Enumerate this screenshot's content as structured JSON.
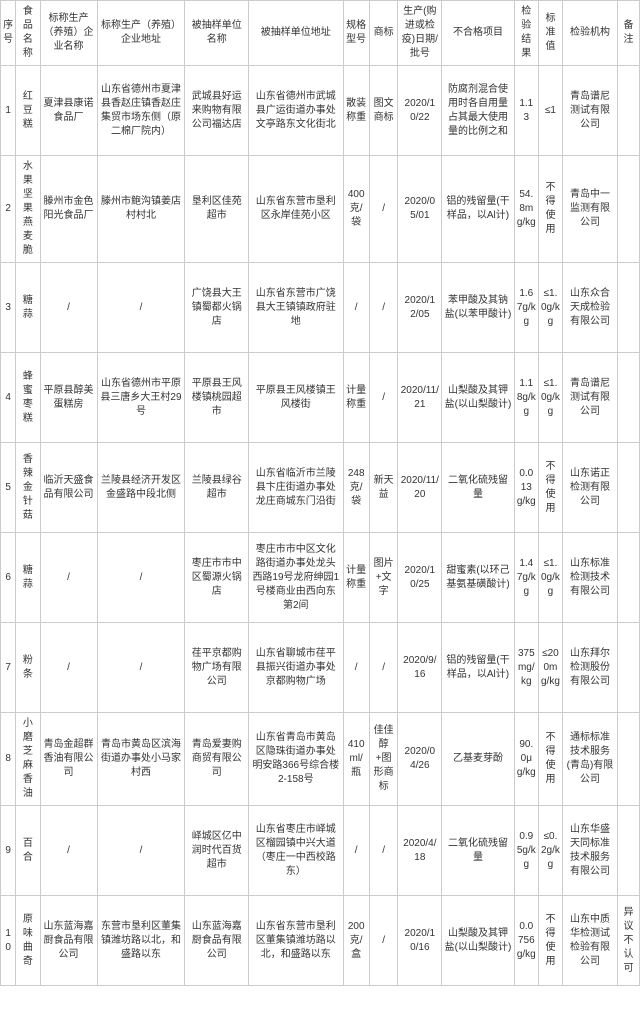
{
  "headers": {
    "idx": "序号",
    "name": "食品名称",
    "producer": "标称生产（养殖）企业名称",
    "producerAddr": "标称生产（养殖）企业地址",
    "sampledUnit": "被抽样单位名称",
    "sampledAddr": "被抽样单位地址",
    "spec": "规格型号",
    "trademark": "商标",
    "date": "生产(购进或检疫)日期/批号",
    "failItem": "不合格项目",
    "result": "检验结果",
    "standard": "标准值",
    "institution": "检验机构",
    "note": "备注"
  },
  "rows": [
    {
      "idx": "1",
      "name": "红豆糕",
      "producer": "夏津县康诺食品厂",
      "producerAddr": "山东省德州市夏津县香赵庄镇香赵庄集贸市场东侧（原二棉厂院内）",
      "sampledUnit": "武城县好运来购物有限公司福达店",
      "sampledAddr": "山东省德州市武城县广运街道办事处文亭路东文化街北",
      "spec": "散装称重",
      "trademark": "图文商标",
      "date": "2020/10/22",
      "failItem": "防腐剂混合使用时各自用量占其最大使用量的比例之和",
      "result": "1.13",
      "standard": "≤1",
      "institution": "青岛谱尼测试有限公司",
      "note": ""
    },
    {
      "idx": "2",
      "name": "水果坚果燕麦脆",
      "producer": "滕州市金色阳光食品厂",
      "producerAddr": "滕州市鲍沟镇姜店村村北",
      "sampledUnit": "垦利区佳苑超市",
      "sampledAddr": "山东省东营市垦利区永岸佳苑小区",
      "spec": "400克/袋",
      "trademark": "/",
      "date": "2020/05/01",
      "failItem": "铝的残留量(干样品，以Al计)",
      "result": "54.8mg/kg",
      "standard": "不得使用",
      "institution": "青岛中一监测有限公司",
      "note": ""
    },
    {
      "idx": "3",
      "name": "糖蒜",
      "producer": "/",
      "producerAddr": "/",
      "sampledUnit": "广饶县大王镇蜀都火锅店",
      "sampledAddr": "山东省东营市广饶县大王镇镇政府驻地",
      "spec": "/",
      "trademark": "/",
      "date": "2020/12/05",
      "failItem": "苯甲酸及其钠盐(以苯甲酸计)",
      "result": "1.67g/kg",
      "standard": "≤1.0g/kg",
      "institution": "山东众合天成检验有限公司",
      "note": ""
    },
    {
      "idx": "4",
      "name": "蜂蜜枣糕",
      "producer": "平原县醇美蛋糕房",
      "producerAddr": "山东省德州市平原县三唐乡大王村29号",
      "sampledUnit": "平原县王风楼镇桃园超市",
      "sampledAddr": "平原县王风楼镇王风楼街",
      "spec": "计量称重",
      "trademark": "/",
      "date": "2020/11/21",
      "failItem": "山梨酸及其钾盐(以山梨酸计)",
      "result": "1.18g/kg",
      "standard": "≤1.0g/kg",
      "institution": "青岛谱尼测试有限公司",
      "note": ""
    },
    {
      "idx": "5",
      "name": "香辣金针菇",
      "producer": "临沂天盛食品有限公司",
      "producerAddr": "兰陵县经济开发区金盛路中段北侧",
      "sampledUnit": "兰陵县绿谷超市",
      "sampledAddr": "山东省临沂市兰陵县卞庄街道办事处龙庄商城东门沿街",
      "spec": "248克/袋",
      "trademark": "新天益",
      "date": "2020/11/20",
      "failItem": "二氧化硫残留量",
      "result": "0.013g/kg",
      "standard": "不得使用",
      "institution": "山东诺正检测有限公司",
      "note": ""
    },
    {
      "idx": "6",
      "name": "糖蒜",
      "producer": "/",
      "producerAddr": "/",
      "sampledUnit": "枣庄市市中区蜀源火锅店",
      "sampledAddr": "枣庄市市中区文化路街道办事处龙头西路19号龙府绅园1号楼商业由西向东第2间",
      "spec": "计量称重",
      "trademark": "图片+文字",
      "date": "2020/10/25",
      "failItem": "甜蜜素(以环己基氨基磺酸计)",
      "result": "1.47g/kg",
      "standard": "≤1.0g/kg",
      "institution": "山东标准检测技术有限公司",
      "note": ""
    },
    {
      "idx": "7",
      "name": "粉条",
      "producer": "/",
      "producerAddr": "/",
      "sampledUnit": "荏平京都购物广场有限公司",
      "sampledAddr": "山东省聊城市荏平县振兴街道办事处京都购物广场",
      "spec": "/",
      "trademark": "/",
      "date": "2020/9/16",
      "failItem": "铝的残留量(干样品，以Al计)",
      "result": "375mg/kg",
      "standard": "≤200mg/kg",
      "institution": "山东拜尔检测股份有限公司",
      "note": ""
    },
    {
      "idx": "8",
      "name": "小磨芝麻香油",
      "producer": "青岛金超群香油有限公司",
      "producerAddr": "青岛市黄岛区滨海街道办事处小马家村西",
      "sampledUnit": "青岛爱妻购商贸有限公司",
      "sampledAddr": "山东省青岛市黄岛区隐珠街道办事处明安路366号综合楼2-158号",
      "spec": "410ml/瓶",
      "trademark": "佳佳醇+图形商标",
      "date": "2020/04/26",
      "failItem": "乙基麦芽酚",
      "result": "90.0μg/kg",
      "standard": "不得使用",
      "institution": "通标标准技术服务(青岛)有限公司",
      "note": ""
    },
    {
      "idx": "9",
      "name": "百合",
      "producer": "/",
      "producerAddr": "/",
      "sampledUnit": "峄城区亿中润时代百货超市",
      "sampledAddr": "山东省枣庄市峄城区榴园镇中兴大道（枣庄一中西校路东）",
      "spec": "/",
      "trademark": "/",
      "date": "2020/4/18",
      "failItem": "二氧化硫残留量",
      "result": "0.95g/kg",
      "standard": "≤0.2g/kg",
      "institution": "山东华盛天同标准技术服务有限公司",
      "note": ""
    },
    {
      "idx": "10",
      "name": "原味曲奇",
      "producer": "山东蓝海嘉厨食品有限公司",
      "producerAddr": "东营市垦利区董集镇潍坊路以北，和盛路以东",
      "sampledUnit": "山东蓝海嘉厨食品有限公司",
      "sampledAddr": "山东省东营市垦利区董集镇潍坊路以北，和盛路以东",
      "spec": "200克/盒",
      "trademark": "/",
      "date": "2020/10/16",
      "failItem": "山梨酸及其钾盐(以山梨酸计)",
      "result": "0.0756g/kg",
      "standard": "不得使用",
      "institution": "山东中质华检测试检验有限公司",
      "note": "异议不认可"
    }
  ]
}
